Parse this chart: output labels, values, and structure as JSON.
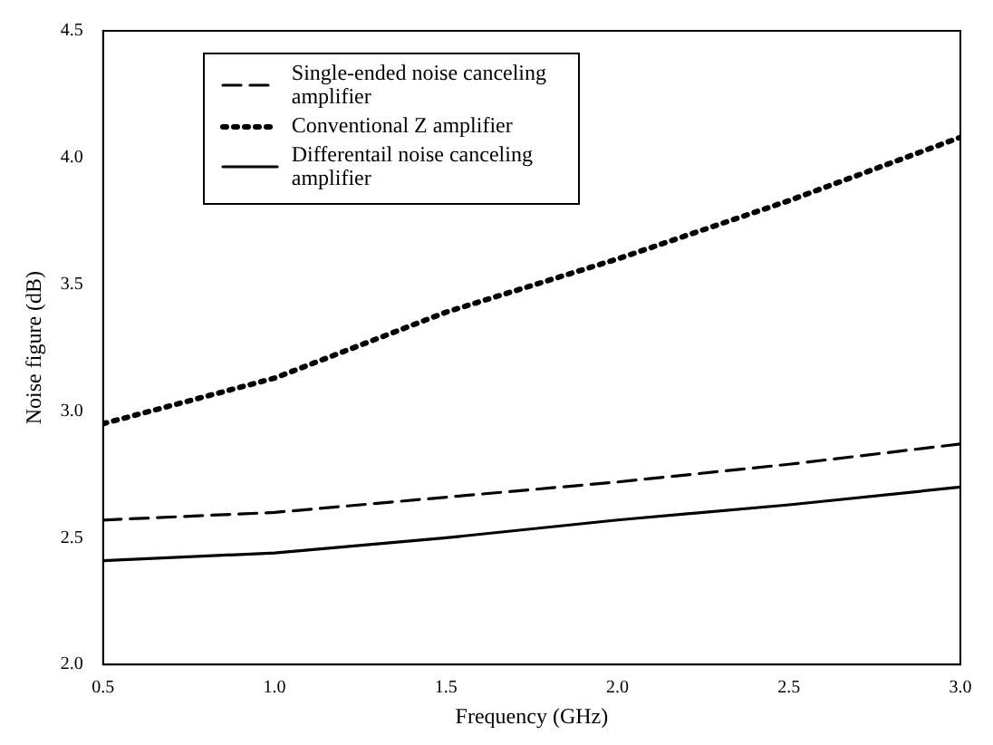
{
  "chart_data": {
    "type": "line",
    "xlabel": "Frequency (GHz)",
    "ylabel": "Noise figure (dB)",
    "xlim": [
      0.5,
      3.0
    ],
    "ylim": [
      2.0,
      4.5
    ],
    "xticks": [
      {
        "value": 0.5,
        "label": "0.5"
      },
      {
        "value": 1.0,
        "label": "1.0"
      },
      {
        "value": 1.5,
        "label": "1.5"
      },
      {
        "value": 2.0,
        "label": "2.0"
      },
      {
        "value": 2.5,
        "label": "2.5"
      },
      {
        "value": 3.0,
        "label": "3.0"
      }
    ],
    "yticks": [
      {
        "value": 2.0,
        "label": "2.0"
      },
      {
        "value": 2.5,
        "label": "2.5"
      },
      {
        "value": 3.0,
        "label": "3.0"
      },
      {
        "value": 3.5,
        "label": "3.5"
      },
      {
        "value": 4.0,
        "label": "4.0"
      },
      {
        "value": 4.5,
        "label": "4.5"
      }
    ],
    "x": [
      0.5,
      1.0,
      1.5,
      2.0,
      2.5,
      3.0
    ],
    "legend": "top left",
    "marker": "none",
    "series": [
      {
        "name": "Single-ended noise canceling amplifier",
        "color": "#000000",
        "line_style": "dashed",
        "values": [
          2.57,
          2.6,
          2.66,
          2.72,
          2.79,
          2.87
        ]
      },
      {
        "name": "Conventional Z amplifier",
        "color": "#000000",
        "line_style": "dotted",
        "values": [
          2.95,
          3.13,
          3.39,
          3.6,
          3.83,
          4.08
        ]
      },
      {
        "name": "Differentail noise canceling amplifier",
        "color": "#000000",
        "line_style": "solid",
        "values": [
          2.41,
          2.44,
          2.5,
          2.57,
          2.63,
          2.7
        ]
      }
    ]
  }
}
